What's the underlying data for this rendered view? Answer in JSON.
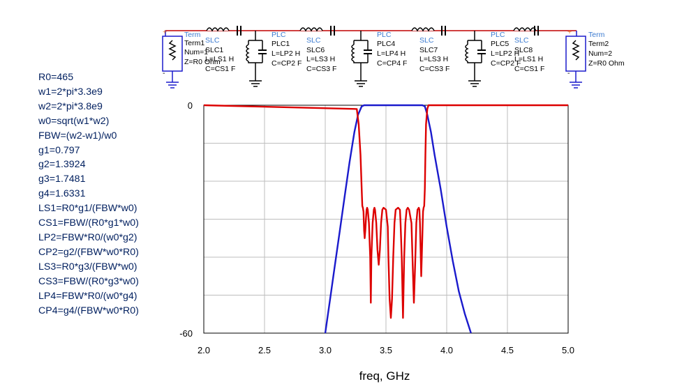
{
  "equations": [
    "R0=465",
    "w1=2*pi*3.3e9",
    "w2=2*pi*3.8e9",
    "w0=sqrt(w1*w2)",
    "FBW=(w2-w1)/w0",
    "g1=0.797",
    "g2=1.3924",
    "g3=1.7481",
    "g4=1.6331",
    "LS1=R0*g1/(FBW*w0)",
    "CS1=FBW/(R0*g1*w0)",
    "LP2=FBW*R0/(w0*g2)",
    "CP2=g2/(FBW*w0*R0)",
    "LS3=R0*g3/(FBW*w0)",
    "CS3=FBW/(R0*g3*w0)",
    "LP4=FBW*R0/(w0*g4)",
    "CP4=g4/(FBW*w0*R0)"
  ],
  "schematic": {
    "term1": {
      "type": "Term",
      "name": "Term1",
      "num": "Num=1",
      "z": "Z=R0 Ohm"
    },
    "term2": {
      "type": "Term",
      "name": "Term2",
      "num": "Num=2",
      "z": "Z=R0 Ohm"
    },
    "slc1": {
      "type": "SLC",
      "name": "SLC1",
      "l": "L=LS1 H",
      "c": "C=CS1 F"
    },
    "plc1": {
      "type": "PLC",
      "name": "PLC1",
      "l": "L=LP2 H",
      "c": "C=CP2 F"
    },
    "slc6": {
      "type": "SLC",
      "name": "SLC6",
      "l": "L=LS3 H",
      "c": "C=CS3 F"
    },
    "plc4": {
      "type": "PLC",
      "name": "PLC4",
      "l": "L=LP4 H",
      "c": "C=CP4 F"
    },
    "slc7": {
      "type": "SLC",
      "name": "SLC7",
      "l": "L=LS3 H",
      "c": "C=CS3 F"
    },
    "plc5": {
      "type": "PLC",
      "name": "PLC5",
      "l": "L=LP2 H",
      "c": "C=CP2 F"
    },
    "slc8": {
      "type": "SLC",
      "name": "SLC8",
      "l": "L=LS1 H",
      "c": "C=CS1 F"
    },
    "plus": "+",
    "minus": "-"
  },
  "chart_data": {
    "type": "line",
    "xlabel": "freq, GHz",
    "ylabel": "",
    "xlim": [
      2.0,
      5.0
    ],
    "ylim": [
      -60,
      0
    ],
    "x_ticks": [
      "2.0",
      "2.5",
      "3.0",
      "3.5",
      "4.0",
      "4.5",
      "5.0"
    ],
    "y_tick_labels": [
      "0",
      "-60"
    ],
    "grid": true,
    "colors": {
      "s11": "#dd0000",
      "s21": "#1a1acc"
    },
    "series": [
      {
        "color": "#1a1acc",
        "x": [
          3.0,
          3.04,
          3.08,
          3.12,
          3.16,
          3.2,
          3.24,
          3.27,
          3.3,
          3.32,
          3.8,
          3.82,
          3.84,
          3.87,
          3.9,
          3.95,
          4.0,
          4.05,
          4.1,
          4.15,
          4.2
        ],
        "y": [
          -60,
          -51,
          -42,
          -33,
          -24,
          -15,
          -7,
          -2.5,
          -0.3,
          0,
          0,
          -0.3,
          -2.5,
          -7,
          -13,
          -22,
          -32,
          -41,
          -49,
          -55,
          -60
        ]
      },
      {
        "color": "#dd0000",
        "x": [
          2.0,
          3.26,
          3.275,
          3.29,
          3.3,
          3.305,
          3.31,
          3.315,
          3.32,
          3.325,
          3.33,
          3.335,
          3.34,
          3.345,
          3.35,
          3.36,
          3.37,
          3.375,
          3.38,
          3.39,
          3.4,
          3.405,
          3.41,
          3.42,
          3.43,
          3.44,
          3.45,
          3.46,
          3.47,
          3.48,
          3.5,
          3.515,
          3.52,
          3.53,
          3.54,
          3.55,
          3.56,
          3.57,
          3.58,
          3.6,
          3.615,
          3.62,
          3.63,
          3.64,
          3.65,
          3.66,
          3.67,
          3.68,
          3.69,
          3.71,
          3.72,
          3.73,
          3.74,
          3.75,
          3.76,
          3.77,
          3.775,
          3.78,
          3.79,
          3.795,
          3.8,
          3.805,
          3.81,
          3.815,
          3.82,
          3.825,
          3.83,
          3.84,
          3.85,
          3.86,
          5.0
        ],
        "y": [
          0,
          -1,
          -5,
          -13,
          -22,
          -26.5,
          -27,
          -28,
          -33,
          -35,
          -33,
          -30,
          -27.5,
          -27,
          -27.5,
          -31,
          -40,
          -52,
          -40,
          -31,
          -27.5,
          -27,
          -27.5,
          -31,
          -38,
          -42,
          -38,
          -31,
          -27.5,
          -27,
          -27.5,
          -32,
          -40,
          -51,
          -56,
          -51,
          -40,
          -31,
          -27.5,
          -27,
          -27.5,
          -31,
          -40,
          -56,
          -40,
          -31,
          -27.5,
          -27,
          -27.5,
          -31,
          -42,
          -52,
          -42,
          -31,
          -27.5,
          -27,
          -27.5,
          -31,
          -45,
          -40,
          -34,
          -28,
          -27,
          -26.5,
          -22,
          -13,
          -5,
          -1,
          0,
          0,
          0
        ]
      }
    ]
  }
}
